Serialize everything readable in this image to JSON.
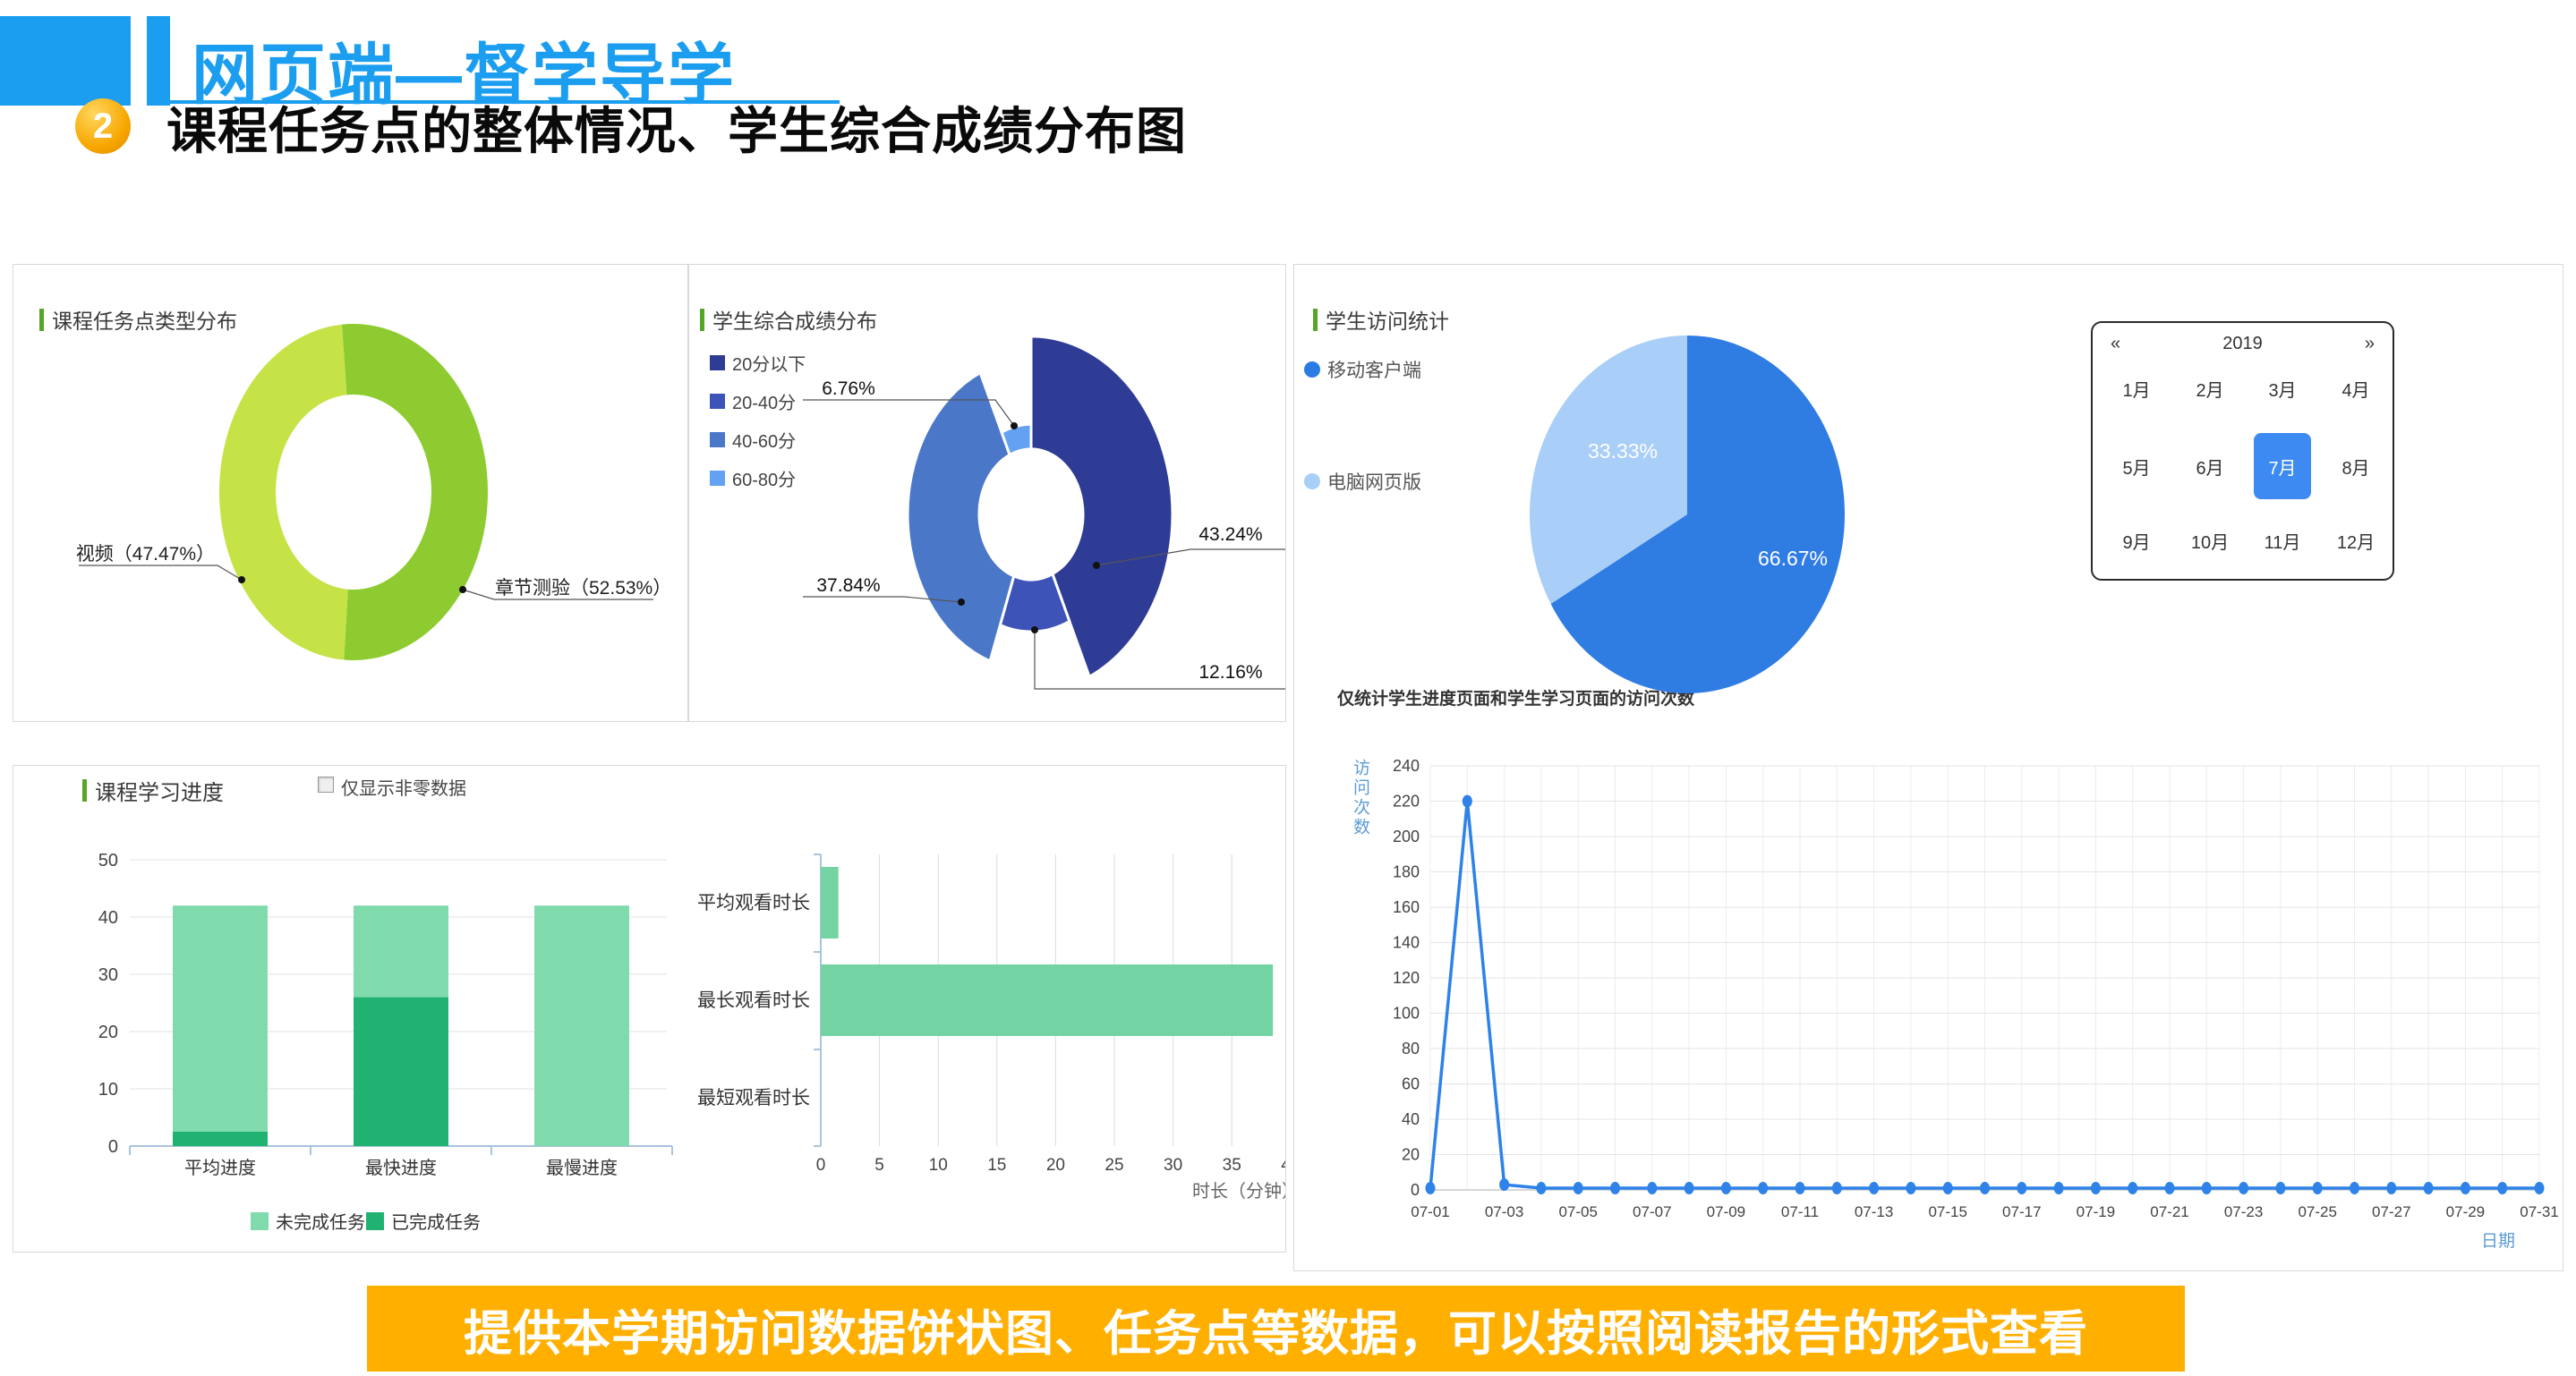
{
  "header": {
    "title": "网页端—督学导学"
  },
  "section": {
    "badge": "2",
    "title": "课程任务点的整体情况、学生综合成绩分布图"
  },
  "panels": {
    "task_type": {
      "title": "课程任务点类型分布"
    },
    "score_dist": {
      "title": "学生综合成绩分布"
    },
    "visit_stats": {
      "title": "学生访问统计",
      "note": "仅统计学生进度页面和学生学习页面的访问次数"
    },
    "progress": {
      "title": "课程学习进度",
      "checkbox_label": "仅显示非零数据",
      "checkbox_checked": false
    }
  },
  "calendar": {
    "year": "2019",
    "prev": "«",
    "next": "»",
    "months": [
      "1月",
      "2月",
      "3月",
      "4月",
      "5月",
      "6月",
      "7月",
      "8月",
      "9月",
      "10月",
      "11月",
      "12月"
    ],
    "selected_index": 6
  },
  "footer": {
    "text": "提供本学期访问数据饼状图、任务点等数据，可以按照阅读报告的形式查看"
  },
  "chart_data": [
    {
      "id": "task-type-donut",
      "type": "pie",
      "subtype": "donut",
      "categories": [
        "章节测验",
        "视频"
      ],
      "values": [
        52.53,
        47.47
      ],
      "colors": [
        "#8ECB30",
        "#C5E346"
      ],
      "title": "课程任务点类型分布"
    },
    {
      "id": "score-rose",
      "type": "pie",
      "subtype": "rose",
      "categories": [
        "20分以下",
        "20-40分",
        "40-60分",
        "60-80分"
      ],
      "values": [
        43.24,
        12.16,
        37.84,
        6.76
      ],
      "colors": [
        "#2F3C96",
        "#3D53B7",
        "#4B77C9",
        "#63A1F2"
      ],
      "legend_position": "left",
      "title": "学生综合成绩分布"
    },
    {
      "id": "visit-pie",
      "type": "pie",
      "categories": [
        "移动客户端",
        "电脑网页版"
      ],
      "values": [
        66.67,
        33.33
      ],
      "colors": [
        "#2F7CE3",
        "#A9CEF8"
      ],
      "title": "学生访问统计"
    },
    {
      "id": "progress-stacked",
      "type": "bar",
      "stacked": true,
      "categories": [
        "平均进度",
        "最快进度",
        "最慢进度"
      ],
      "series": [
        {
          "name": "已完成任务",
          "values": [
            2.5,
            26,
            0
          ],
          "color": "#1FB271"
        },
        {
          "name": "未完成任务",
          "values": [
            39.5,
            16,
            42
          ],
          "color": "#7FDBAC"
        }
      ],
      "ylim": [
        0,
        50
      ],
      "ytick_step": 10,
      "grid": true,
      "legend_position": "bottom"
    },
    {
      "id": "watch-duration",
      "type": "bar",
      "orientation": "horizontal",
      "categories": [
        "平均观看时长",
        "最长观看时长",
        "最短观看时长"
      ],
      "values": [
        1.5,
        38.5,
        0
      ],
      "color": "#74D3A2",
      "xlabel": "时长（分钟）",
      "xlim": [
        0,
        40
      ],
      "xtick_step": 5,
      "grid": true
    },
    {
      "id": "daily-visits",
      "type": "line",
      "x_days": 31,
      "x_labels_shown": [
        "07-01",
        "07-03",
        "07-05",
        "07-07",
        "07-09",
        "07-11",
        "07-13",
        "07-15",
        "07-17",
        "07-19",
        "07-21",
        "07-23",
        "07-25",
        "07-27",
        "07-29",
        "07-31"
      ],
      "values": [
        1,
        220,
        3,
        1,
        1,
        1,
        1,
        1,
        1,
        1,
        1,
        1,
        1,
        1,
        1,
        1,
        1,
        1,
        1,
        1,
        1,
        1,
        1,
        1,
        1,
        1,
        1,
        1,
        1,
        1,
        1
      ],
      "ylabel": "访问次数",
      "xlabel": "日期",
      "ylim": [
        0,
        240
      ],
      "ytick_step": 20,
      "grid": true,
      "color": "#2E82E8"
    }
  ]
}
